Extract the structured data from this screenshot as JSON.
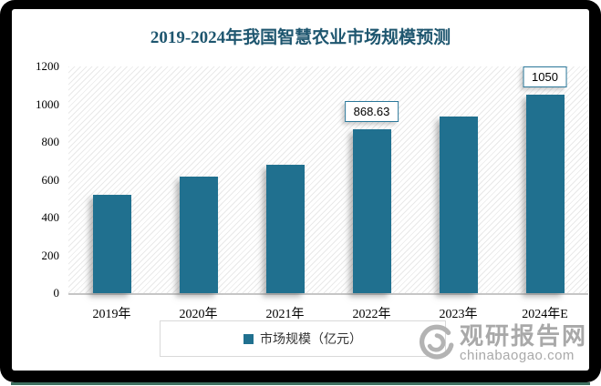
{
  "chart_data": {
    "type": "bar",
    "title": "2019-2024年我国智慧农业市场规模预测",
    "categories": [
      "2019年",
      "2020年",
      "2021年",
      "2022年",
      "2023年",
      "2024年E"
    ],
    "values": [
      520,
      617,
      680,
      868.63,
      935,
      1050
    ],
    "data_labels": [
      "",
      "",
      "",
      "868.63",
      "",
      "1050"
    ],
    "yticks": [
      0,
      200,
      400,
      600,
      800,
      1000,
      1200
    ],
    "ylim": [
      0,
      1200
    ],
    "xlabel": "",
    "ylabel": "",
    "grid": false,
    "legend_position": "bottom",
    "legend_entries": [
      "市场规模（亿元）"
    ]
  },
  "legend": {
    "label": "市场规模（亿元）"
  },
  "watermark": {
    "site_name": "观研报告网",
    "site_url": "chinabaogao.com"
  },
  "colors": {
    "bar": "#20708f",
    "title": "#1e566f",
    "label_box_border": "#2a7799",
    "frame": "#000000",
    "bottom_strip": "#3e7060",
    "watermark_gray": "#a9a9a9",
    "axis_line": "#c6c6c6"
  }
}
